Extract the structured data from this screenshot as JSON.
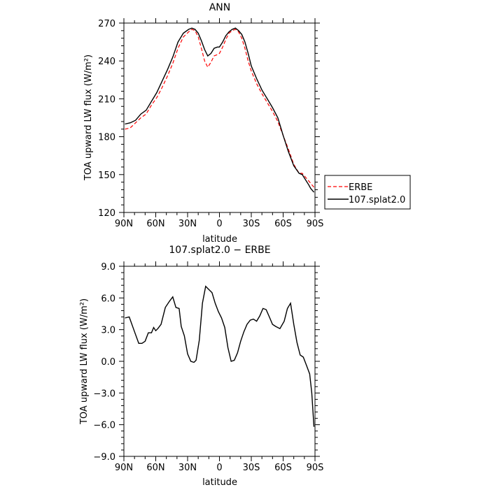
{
  "chart_data": [
    {
      "type": "line",
      "title": "ANN",
      "xlabel": "latitude",
      "ylabel": "TOA upward LW flux (W/m²)",
      "xlim": [
        90,
        -90
      ],
      "ylim": [
        120,
        270
      ],
      "xticks": [
        90,
        60,
        30,
        0,
        -30,
        -60,
        -90
      ],
      "xtick_labels": [
        "90N",
        "60N",
        "30N",
        "0",
        "30S",
        "60S",
        "90S"
      ],
      "yticks": [
        120,
        150,
        180,
        210,
        240,
        270
      ],
      "ytick_labels": [
        "120",
        "150",
        "180",
        "210",
        "240",
        "270"
      ],
      "legend": {
        "placement": "right-outside",
        "entries": [
          "ERBE",
          "107.splat2.0"
        ]
      },
      "series": [
        {
          "name": "ERBE",
          "color": "#ff0000",
          "dash": true,
          "x": [
            89,
            84,
            79,
            74,
            69,
            64,
            59,
            54,
            49,
            44,
            39,
            34,
            29,
            26,
            23,
            20,
            17,
            14,
            11,
            8,
            5,
            2,
            0,
            -3,
            -6,
            -9,
            -12,
            -15,
            -18,
            -21,
            -24,
            -27,
            -30,
            -35,
            -40,
            -45,
            -50,
            -55,
            -60,
            -65,
            -70,
            -75,
            -78,
            -81,
            -84,
            -86,
            -88,
            -89
          ],
          "y": [
            186,
            187,
            191,
            195,
            198,
            205,
            211,
            219,
            228,
            238,
            250,
            259,
            263,
            265,
            264,
            259,
            250,
            240,
            235,
            239,
            244,
            245,
            246,
            251,
            257,
            262,
            264,
            265,
            263,
            258,
            250,
            240,
            232,
            222,
            214,
            207,
            200,
            192,
            181,
            170,
            158,
            151,
            151,
            148,
            145,
            143,
            141,
            140
          ]
        },
        {
          "name": "107.splat2.0",
          "color": "#000000",
          "dash": false,
          "x": [
            89,
            84,
            79,
            74,
            69,
            64,
            59,
            54,
            49,
            44,
            39,
            34,
            29,
            26,
            23,
            20,
            17,
            14,
            11,
            8,
            5,
            2,
            0,
            -3,
            -6,
            -9,
            -12,
            -15,
            -18,
            -21,
            -24,
            -27,
            -30,
            -35,
            -40,
            -45,
            -50,
            -55,
            -60,
            -65,
            -70,
            -75,
            -78,
            -81,
            -84,
            -86,
            -88,
            -89
          ],
          "y": [
            190,
            191,
            193,
            198,
            201,
            208,
            215,
            224,
            233,
            243,
            255,
            262,
            265,
            266,
            265,
            262,
            256,
            249,
            244,
            246,
            250,
            251,
            251,
            255,
            260,
            263,
            265,
            266,
            264,
            261,
            255,
            246,
            236,
            226,
            217,
            210,
            203,
            195,
            181,
            168,
            157,
            151,
            150,
            146,
            142,
            139,
            137,
            136
          ]
        }
      ]
    },
    {
      "type": "line",
      "title": "107.splat2.0 − ERBE",
      "xlabel": "latitude",
      "ylabel": "TOA upward LW flux (W/m²)",
      "xlim": [
        90,
        -90
      ],
      "ylim": [
        -9.0,
        9.0
      ],
      "xticks": [
        90,
        60,
        30,
        0,
        -30,
        -60,
        -90
      ],
      "xtick_labels": [
        "90N",
        "60N",
        "30N",
        "0",
        "30S",
        "60S",
        "90S"
      ],
      "yticks": [
        -9,
        -6,
        -3,
        0,
        3,
        6,
        9
      ],
      "ytick_labels": [
        "−9.0",
        "−6.0",
        "−3.0",
        "0.0",
        "3.0",
        "6.0",
        "9.0"
      ],
      "series": [
        {
          "name": "107.splat2.0 - ERBE",
          "color": "#000000",
          "dash": false,
          "x": [
            89,
            85,
            80,
            76,
            73,
            70,
            67,
            64,
            62,
            60,
            58,
            55,
            51,
            47,
            44,
            41,
            38,
            36,
            33,
            30,
            27,
            24,
            22,
            19,
            16,
            13,
            10,
            7,
            4,
            1,
            -2,
            -5,
            -8,
            -11,
            -14,
            -17,
            -20,
            -23,
            -26,
            -29,
            -32,
            -35,
            -38,
            -41,
            -44,
            -47,
            -50,
            -53,
            -57,
            -61,
            -64,
            -67,
            -70,
            -73,
            -76,
            -79,
            -82,
            -85,
            -87,
            -89
          ],
          "y": [
            4.1,
            4.2,
            2.8,
            1.7,
            1.7,
            1.9,
            2.7,
            2.7,
            3.2,
            2.9,
            3.1,
            3.5,
            5.1,
            5.7,
            6.1,
            5.1,
            5.0,
            3.3,
            2.4,
            0.7,
            0.0,
            -0.1,
            0.1,
            2.0,
            5.5,
            7.1,
            6.8,
            6.5,
            5.5,
            4.7,
            4.1,
            3.2,
            1.3,
            0.0,
            0.1,
            0.8,
            1.9,
            2.8,
            3.5,
            3.9,
            4.0,
            3.8,
            4.3,
            5.0,
            4.9,
            4.2,
            3.5,
            3.3,
            3.1,
            3.8,
            5.0,
            5.5,
            3.5,
            1.8,
            0.6,
            0.4,
            -0.4,
            -1.2,
            -3.0,
            -6.2
          ]
        }
      ]
    }
  ]
}
